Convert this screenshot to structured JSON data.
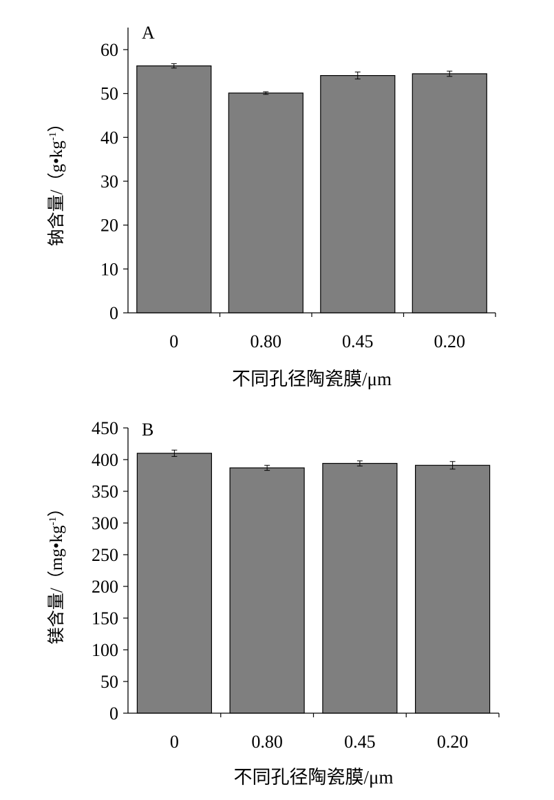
{
  "colors": {
    "bar_fill": "#7f7f7f",
    "bar_stroke": "#000000",
    "axis": "#000000",
    "error_bar": "#000000"
  },
  "chart_data": [
    {
      "type": "bar",
      "panel_label": "A",
      "categories": [
        "0",
        "0.80",
        "0.45",
        "0.20"
      ],
      "values": [
        56.3,
        50.1,
        54.1,
        54.5
      ],
      "errors": [
        0.5,
        0.3,
        0.8,
        0.6
      ],
      "xlabel": "不同孔径陶瓷膜/μm",
      "ylabel_main": "钠含量/（g•kg",
      "ylabel_sup": "-1",
      "ylabel_end": "）",
      "ylim": [
        0,
        60
      ],
      "yticks": [
        0,
        10,
        20,
        30,
        40,
        50,
        60
      ],
      "grid": false,
      "legend": "none"
    },
    {
      "type": "bar",
      "panel_label": "B",
      "categories": [
        "0",
        "0.80",
        "0.45",
        "0.20"
      ],
      "values": [
        410,
        387,
        394,
        391
      ],
      "errors": [
        5,
        4,
        4,
        6
      ],
      "xlabel": "不同孔径陶瓷膜/μm",
      "ylabel_main": "镁含量/（mg•kg",
      "ylabel_sup": "-1",
      "ylabel_end": "）",
      "ylim": [
        0,
        450
      ],
      "yticks": [
        0,
        50,
        100,
        150,
        200,
        250,
        300,
        350,
        400,
        450
      ],
      "grid": false,
      "legend": "none"
    }
  ]
}
